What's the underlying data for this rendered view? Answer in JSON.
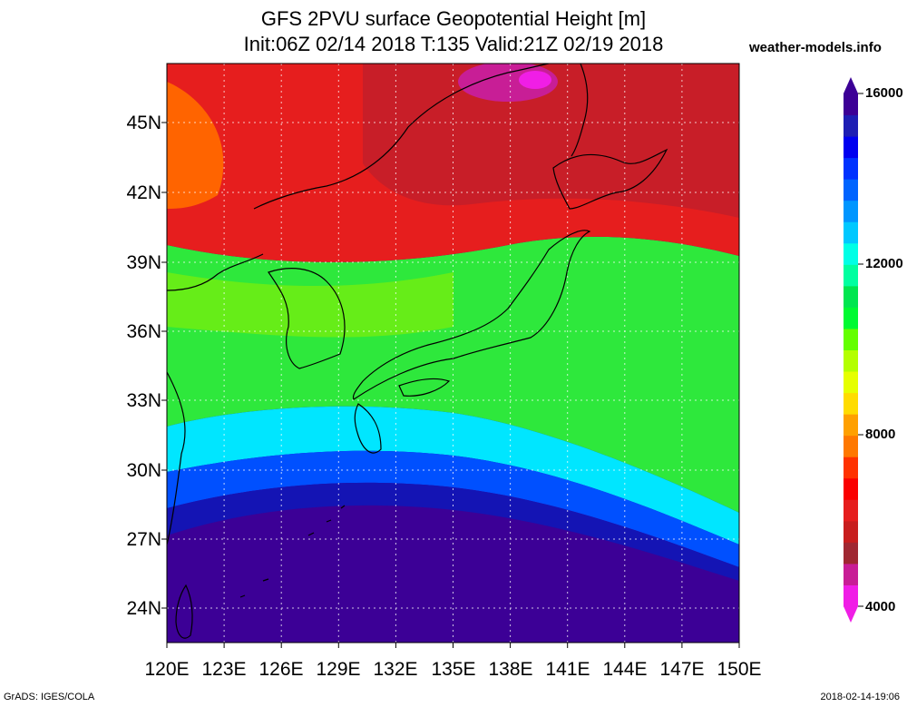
{
  "title_line1": "GFS 2PVU surface Geopotential Height [m]",
  "title_line2": "Init:06Z 02/14 2018 T:135 Valid:21Z 02/19 2018",
  "site": "weather-models.info",
  "lat_labels": [
    "45N",
    "42N",
    "39N",
    "36N",
    "33N",
    "30N",
    "27N",
    "24N"
  ],
  "lon_labels": [
    "120E",
    "123E",
    "126E",
    "129E",
    "132E",
    "135E",
    "138E",
    "141E",
    "144E",
    "147E",
    "150E"
  ],
  "colorbar": {
    "labels": [
      "16000",
      "12000",
      "8000",
      "4000"
    ],
    "colors": [
      "#f01ee6",
      "#c81e96",
      "#a02832",
      "#c81e1e",
      "#e61e1e",
      "#fa0000",
      "#ff3200",
      "#ff7800",
      "#ffa000",
      "#ffdc00",
      "#e6ff00",
      "#b4ff00",
      "#64ff00",
      "#00fa32",
      "#00e650",
      "#00ffa0",
      "#00ffe6",
      "#00c8ff",
      "#0096ff",
      "#0064ff",
      "#0032ff",
      "#0000f0",
      "#1e1eb4",
      "#3c0096"
    ]
  },
  "footer_left": "GrADS: IGES/COLA",
  "footer_right": "2018-02-14-19:06"
}
